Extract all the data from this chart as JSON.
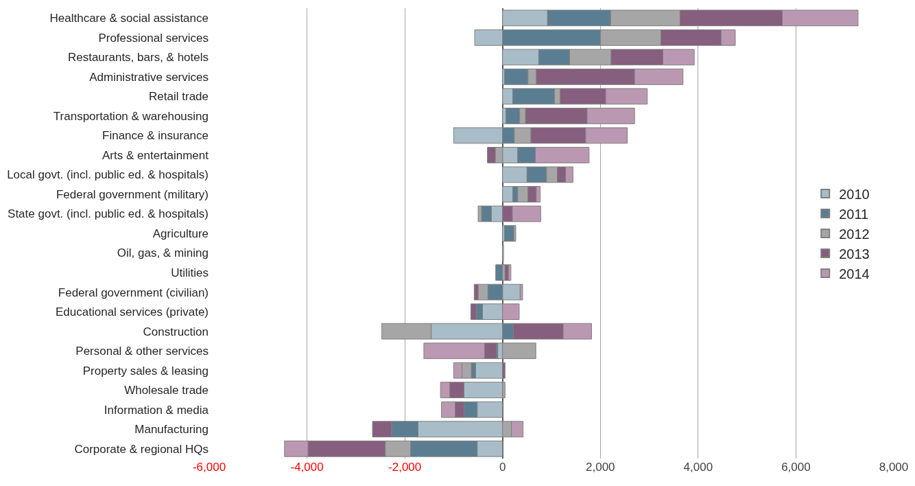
{
  "chart_data": {
    "type": "bar",
    "orientation": "horizontal",
    "stacked": true,
    "categories": [
      "Healthcare & social assistance",
      "Professional services",
      "Restaurants, bars, & hotels",
      "Administrative services",
      "Retail trade",
      "Transportation & warehousing",
      "Finance & insurance",
      "Arts & entertainment",
      "Local govt. (incl. public ed. & hospitals)",
      "Federal government (military)",
      "State govt. (incl. public ed. & hospitals)",
      "Agriculture",
      "Oil, gas, & mining",
      "Utilities",
      "Federal government (civilian)",
      "Educational services (private)",
      "Construction",
      "Personal & other services",
      "Property sales & leasing",
      "Wholesale trade",
      "Information & media",
      "Manufacturing",
      "Corporate & regional HQs"
    ],
    "series": [
      {
        "name": "2010",
        "color": "#a8bdc8",
        "values": [
          920,
          -570,
          740,
          40,
          210,
          70,
          -1000,
          310,
          500,
          210,
          -230,
          40,
          20,
          null,
          360,
          -410,
          -1460,
          -100,
          -550,
          -790,
          -520,
          -1730,
          -520
        ]
      },
      {
        "name": "2011",
        "color": "#5b7d91",
        "values": [
          1290,
          2000,
          630,
          480,
          850,
          280,
          240,
          360,
          400,
          100,
          -200,
          190,
          null,
          -140,
          -300,
          -130,
          220,
          -30,
          -90,
          null,
          -270,
          -540,
          -1360
        ]
      },
      {
        "name": "2012",
        "color": "#a6a6a6",
        "values": [
          1420,
          1240,
          850,
          170,
          120,
          120,
          340,
          -150,
          220,
          210,
          -70,
          40,
          null,
          50,
          -200,
          null,
          -1010,
          680,
          -190,
          50,
          null,
          180,
          -520
        ]
      },
      {
        "name": "2013",
        "color": "#865e7e",
        "values": [
          2090,
          1230,
          1060,
          2010,
          930,
          1260,
          1120,
          -160,
          170,
          170,
          200,
          null,
          null,
          70,
          -80,
          -110,
          1020,
          -240,
          50,
          -290,
          -180,
          -390,
          -1580
        ]
      },
      {
        "name": "2014",
        "color": "#bb98b2",
        "values": [
          1550,
          290,
          640,
          990,
          850,
          970,
          850,
          1100,
          150,
          80,
          580,
          null,
          null,
          50,
          50,
          340,
          580,
          -1240,
          -170,
          -190,
          -280,
          240,
          -480
        ]
      }
    ],
    "xlim": [
      -6000,
      8000
    ],
    "xticks": [
      {
        "value": -6000,
        "label": "-6,000"
      },
      {
        "value": -4000,
        "label": "-4,000"
      },
      {
        "value": -2000,
        "label": "-2,000"
      },
      0,
      {
        "value": 2000,
        "label": "2,000"
      },
      {
        "value": 4000,
        "label": "4,000"
      },
      {
        "value": 6000,
        "label": "6,000"
      },
      {
        "value": 8000,
        "label": "8,000"
      }
    ],
    "grid": "x",
    "legend": "right"
  }
}
